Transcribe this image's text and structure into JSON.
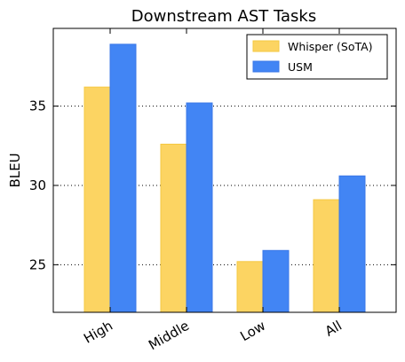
{
  "chart_data": {
    "type": "bar",
    "title": "Downstream AST Tasks",
    "xlabel": "",
    "ylabel": "BLEU",
    "categories": [
      "High",
      "Middle",
      "Low",
      "All"
    ],
    "series": [
      {
        "name": "Whisper (SoTA)",
        "values": [
          36.2,
          32.6,
          25.2,
          29.1
        ],
        "color": "#fcd462",
        "edge": "#f5c842"
      },
      {
        "name": "USM",
        "values": [
          38.9,
          35.2,
          25.9,
          30.6
        ],
        "color": "#4285f4",
        "edge": "#3b78e7"
      }
    ],
    "ylim": [
      22,
      39.9
    ],
    "yticks": [
      25,
      30,
      35
    ],
    "grid": "y-dotted",
    "legend": "top-right"
  }
}
